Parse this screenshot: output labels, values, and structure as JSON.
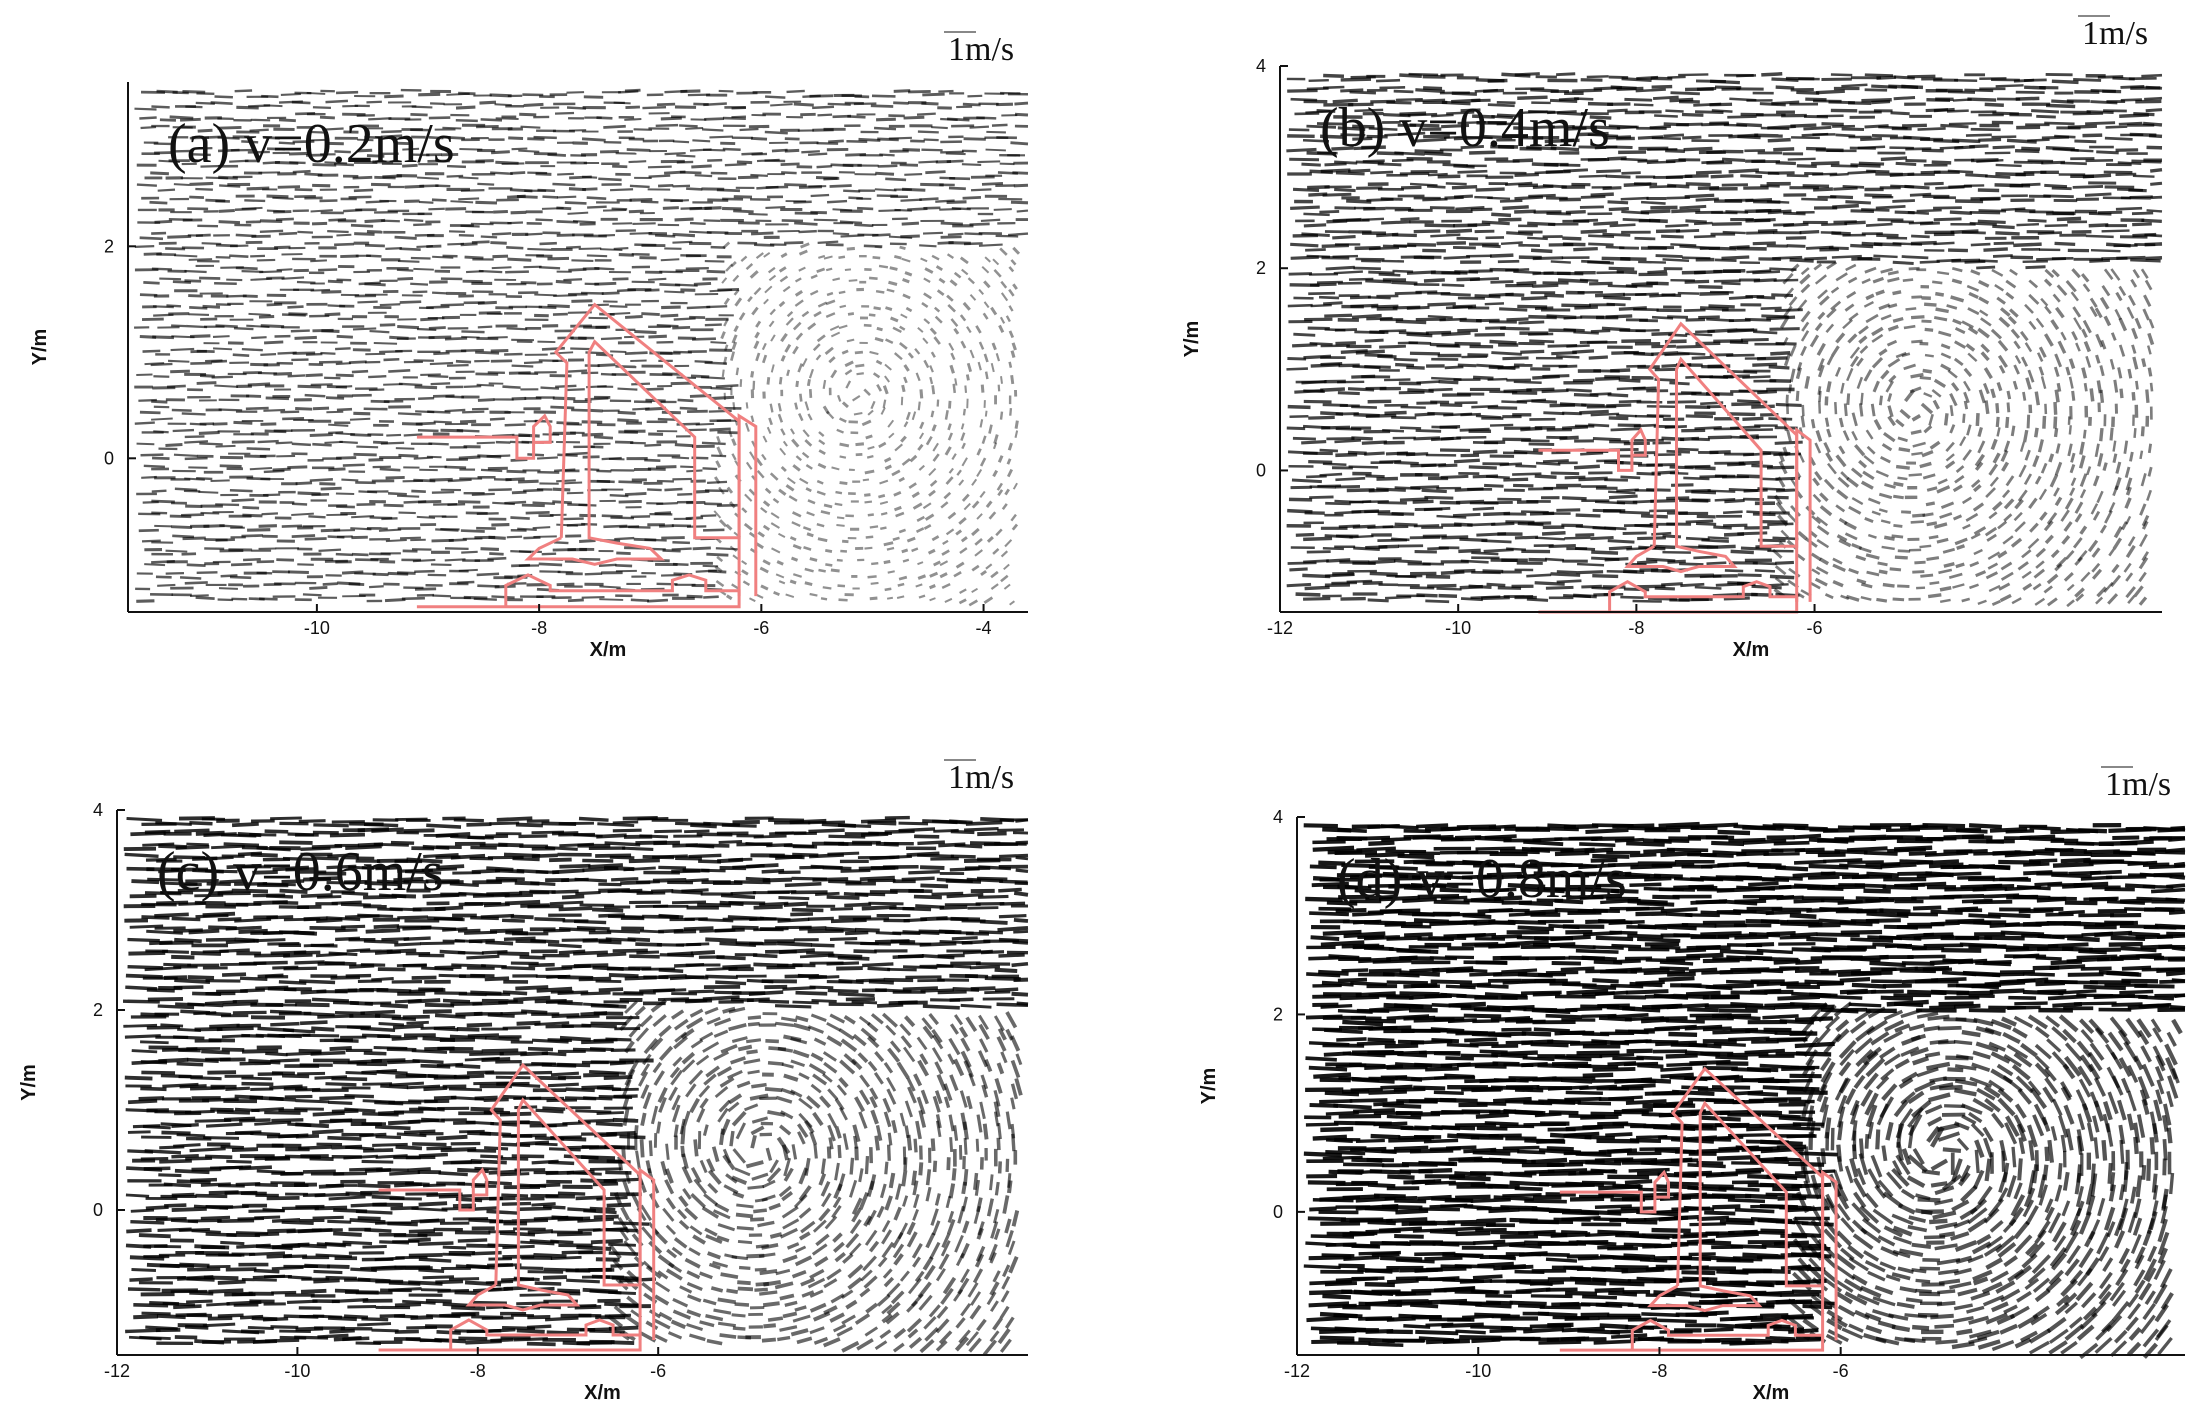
{
  "chart_data": [
    {
      "type": "vector-field",
      "panel_label": "(a)  v=0.2m/s",
      "scale_label": "1m/s",
      "xlabel": "X/m",
      "ylabel": "Y/m",
      "xlim": [
        -11.7,
        -3.6
      ],
      "ylim": [
        -1.45,
        3.55
      ],
      "xticks": [
        -10,
        -8,
        -6,
        -4
      ],
      "yticks": [
        0,
        2
      ],
      "inflow_velocity": 0.2
    },
    {
      "type": "vector-field",
      "panel_label": "(b)  v=0.4m/s",
      "scale_label": "1m/s",
      "xlabel": "X/m",
      "ylabel": "Y/m",
      "xlim": [
        -12,
        -2.1
      ],
      "ylim": [
        -1.4,
        4.0
      ],
      "xticks": [
        -12,
        -10,
        -8,
        -6
      ],
      "yticks": [
        0,
        2,
        4
      ],
      "inflow_velocity": 0.4
    },
    {
      "type": "vector-field",
      "panel_label": "(c)  v=0.6m/s",
      "scale_label": "1m/s",
      "xlabel": "X/m",
      "ylabel": "Y/m",
      "xlim": [
        -12,
        -1.9
      ],
      "ylim": [
        -1.45,
        4.0
      ],
      "xticks": [
        -12,
        -10,
        -8,
        -6
      ],
      "yticks": [
        0,
        2,
        4
      ],
      "inflow_velocity": 0.6
    },
    {
      "type": "vector-field",
      "panel_label": "(d)  v=0.8m/s",
      "scale_label": "1m/s",
      "xlabel": "X/m",
      "ylabel": "Y/m",
      "xlim": [
        -12,
        -2.2
      ],
      "ylim": [
        -1.45,
        4.0
      ],
      "xticks": [
        -12,
        -10,
        -8,
        -6
      ],
      "yticks": [
        0,
        2,
        4
      ],
      "inflow_velocity": 0.8
    }
  ],
  "colors": {
    "structure": "#f08080",
    "vector": "#000000",
    "axis": "#111111"
  }
}
